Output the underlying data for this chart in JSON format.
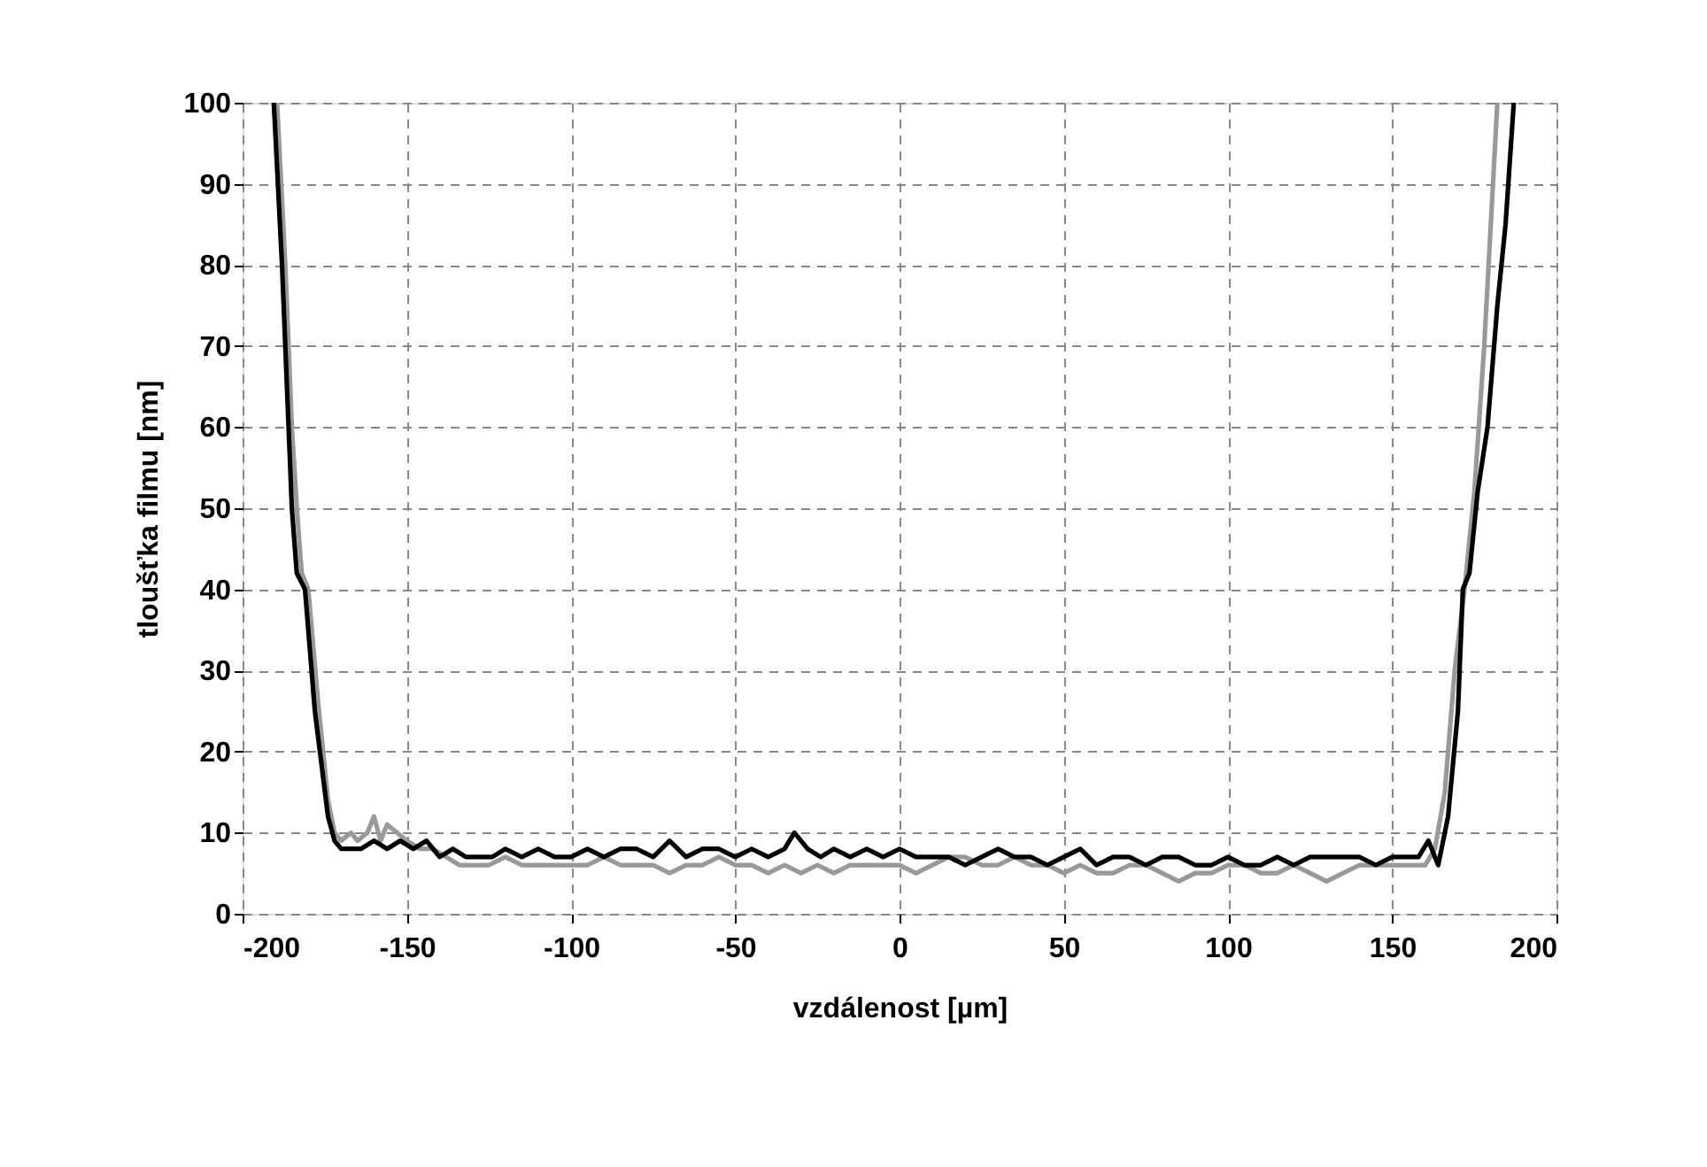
{
  "chart_data": {
    "type": "line",
    "xlabel": "vzdálenost [µm]",
    "ylabel": "tloušťka filmu [nm]",
    "xlim": [
      -200,
      200
    ],
    "xticks": [
      -200,
      -150,
      -100,
      -50,
      0,
      50,
      100,
      150,
      200
    ],
    "ylim": [
      0,
      100
    ],
    "yticks": [
      0,
      10,
      20,
      30,
      40,
      50,
      60,
      70,
      80,
      90,
      100
    ],
    "grid": true,
    "marker": "none",
    "line_style": "solid",
    "series": [
      {
        "color": "#999999",
        "x": [
          -189.5,
          -187,
          -185,
          -183.5,
          -182,
          -180,
          -177,
          -174,
          -172,
          -170,
          -167,
          -165,
          -162,
          -160,
          -158,
          -156,
          -153,
          -150,
          -146,
          -142,
          -138,
          -134,
          -130,
          -125,
          -120,
          -115,
          -110,
          -105,
          -100,
          -95,
          -90,
          -85,
          -80,
          -75,
          -70,
          -65,
          -60,
          -55,
          -50,
          -45,
          -40,
          -35,
          -30,
          -25,
          -20,
          -15,
          -10,
          -5,
          0,
          5,
          10,
          15,
          20,
          25,
          30,
          35,
          40,
          45,
          50,
          55,
          60,
          65,
          70,
          75,
          80,
          85,
          90,
          95,
          100,
          105,
          110,
          115,
          120,
          125,
          130,
          135,
          140,
          145,
          150,
          155,
          160,
          163,
          166,
          169,
          172,
          175,
          178,
          180,
          182
        ],
        "values": [
          100,
          80,
          60,
          50,
          42,
          40,
          26,
          14,
          10,
          9,
          10,
          9,
          10,
          12,
          9,
          11,
          10,
          9,
          8,
          8,
          7,
          6,
          6,
          6,
          7,
          6,
          6,
          6,
          6,
          6,
          7,
          6,
          6,
          6,
          5,
          6,
          6,
          7,
          6,
          6,
          5,
          6,
          5,
          6,
          5,
          6,
          6,
          6,
          6,
          5,
          6,
          7,
          7,
          6,
          6,
          7,
          6,
          6,
          5,
          6,
          5,
          5,
          6,
          6,
          5,
          4,
          5,
          5,
          6,
          6,
          5,
          5,
          6,
          5,
          4,
          5,
          6,
          6,
          6,
          6,
          6,
          8,
          15,
          30,
          40,
          52,
          70,
          85,
          100
        ]
      },
      {
        "color": "#000000",
        "x": [
          -190.5,
          -188,
          -186,
          -185,
          -183.5,
          -181,
          -178,
          -174,
          -172,
          -170,
          -167,
          -164,
          -160,
          -156,
          -152,
          -148,
          -144,
          -140,
          -136,
          -132,
          -128,
          -124,
          -120,
          -115,
          -110,
          -105,
          -100,
          -95,
          -90,
          -85,
          -80,
          -75,
          -70,
          -65,
          -60,
          -55,
          -50,
          -45,
          -40,
          -35,
          -32,
          -28,
          -24,
          -20,
          -15,
          -10,
          -5,
          0,
          5,
          10,
          15,
          20,
          25,
          30,
          35,
          40,
          45,
          50,
          55,
          60,
          65,
          70,
          75,
          80,
          85,
          90,
          95,
          100,
          105,
          110,
          115,
          120,
          125,
          130,
          135,
          140,
          145,
          150,
          155,
          158,
          161,
          164,
          167,
          170,
          171.5,
          173.5,
          176,
          179,
          182,
          184.5,
          187
        ],
        "values": [
          100,
          80,
          60,
          50,
          42,
          40,
          25,
          12,
          9,
          8,
          8,
          8,
          9,
          8,
          9,
          8,
          9,
          7,
          8,
          7,
          7,
          7,
          8,
          7,
          8,
          7,
          7,
          8,
          7,
          8,
          8,
          7,
          9,
          7,
          8,
          8,
          7,
          8,
          7,
          8,
          10,
          8,
          7,
          8,
          7,
          8,
          7,
          8,
          7,
          7,
          7,
          6,
          7,
          8,
          7,
          7,
          6,
          7,
          8,
          6,
          7,
          7,
          6,
          7,
          7,
          6,
          6,
          7,
          6,
          6,
          7,
          6,
          7,
          7,
          7,
          7,
          6,
          7,
          7,
          7,
          9,
          6,
          12,
          25,
          40,
          42,
          52,
          60,
          75,
          85,
          100
        ]
      }
    ]
  }
}
